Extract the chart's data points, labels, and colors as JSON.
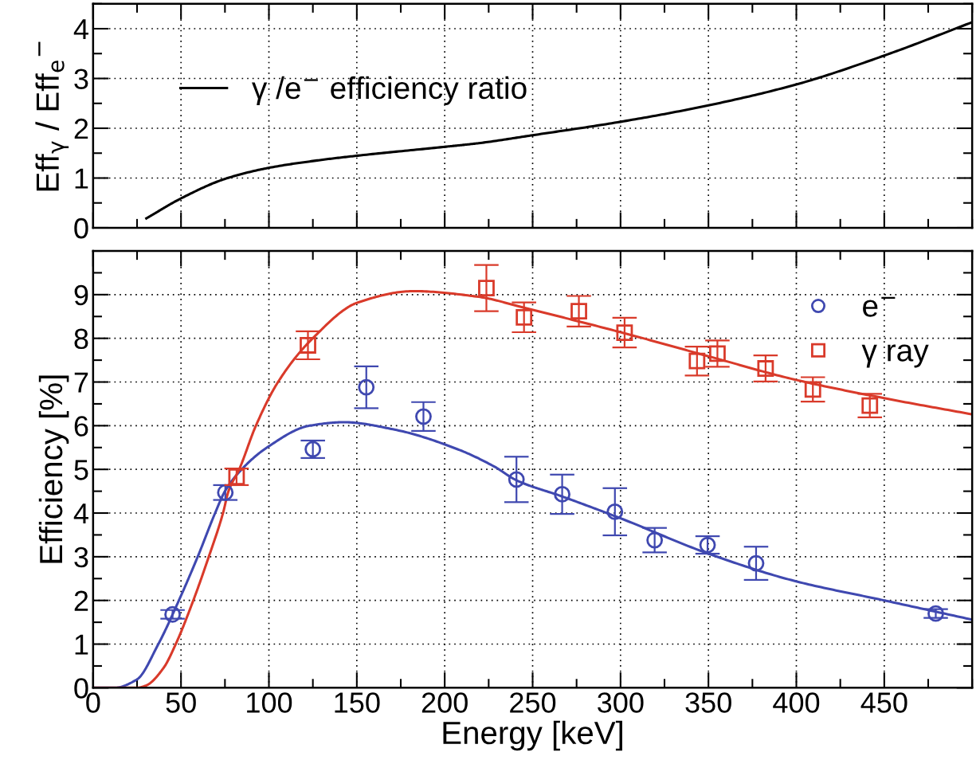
{
  "chart_data": [
    {
      "type": "line",
      "ylabel": "Eff$_{γ}$ / Eff$_{e}$$^{−}$",
      "xlim": [
        0,
        500
      ],
      "xticks": [
        0,
        50,
        100,
        150,
        200,
        250,
        300,
        350,
        400,
        450
      ],
      "ylim": [
        0,
        4.5
      ],
      "yticks": [
        0,
        1,
        2,
        3,
        4
      ],
      "tick_labels": "y",
      "grid": true,
      "legend": "top left",
      "series": [
        {
          "name": "γ /e$^{−}$ efficiency ratio",
          "color": "#000000",
          "x": [
            30.3,
            50.5,
            75.6,
            100.7,
            126.7,
            150.5,
            200.8,
            219.3,
            250,
            300,
            350,
            400,
            450,
            500
          ],
          "values": [
            0.19,
            0.6,
            0.99,
            1.21,
            1.35,
            1.45,
            1.63,
            1.7,
            1.86,
            2.13,
            2.46,
            2.88,
            3.46,
            4.13
          ]
        }
      ]
    },
    {
      "type": "line",
      "xlabel": "Energy [keV]",
      "ylabel": "Efficiency [%]",
      "xlim": [
        0,
        500
      ],
      "xticks": [
        0,
        50,
        100,
        150,
        200,
        250,
        300,
        350,
        400,
        450
      ],
      "ylim": [
        0,
        10
      ],
      "yticks": [
        0,
        1,
        2,
        3,
        4,
        5,
        6,
        7,
        8,
        9
      ],
      "grid": true,
      "legend": "top right",
      "series": [
        {
          "color": "#3f48b0",
          "x": [
            0,
            12,
            24.9,
            37.1,
            48.8,
            59.5,
            69.4,
            75,
            84.5,
            98.9,
            123.1,
            142.8,
            171.5,
            207.4,
            228.4,
            240.8,
            266.8,
            300,
            350,
            398.6,
            450,
            500
          ],
          "values": [
            0,
            0,
            0.19,
            1,
            2,
            3,
            4,
            4.5,
            5,
            5.5,
            6,
            6.08,
            5.91,
            5.46,
            5.06,
            4.75,
            4.38,
            3.88,
            3.07,
            2.45,
            2,
            1.56
          ]
        },
        {
          "color": "#d93a2a",
          "x": [
            0,
            25,
            30,
            40,
            47,
            57,
            65.8,
            73.9,
            77,
            83.1,
            92.6,
            105.2,
            124.9,
            150.6,
            182.3,
            219.3,
            245.1,
            300,
            350,
            398.6,
            450,
            500
          ],
          "values": [
            0,
            0,
            0.05,
            0.45,
            1,
            2,
            3,
            4,
            4.5,
            5,
            6,
            7,
            8,
            8.82,
            9.08,
            8.95,
            8.7,
            8.14,
            7.59,
            7.06,
            6.63,
            6.26
          ]
        },
        {
          "type": "scatter",
          "name": "e$^{−}$",
          "color": "#3f48b0",
          "marker": "circle",
          "x": [
            45.2,
            75.2,
            125,
            155.4,
            187.9,
            240.8,
            266.8,
            296.8,
            319.4,
            349.5,
            377.1,
            479.3
          ],
          "values": [
            1.68,
            4.47,
            5.46,
            6.88,
            6.21,
            4.77,
            4.43,
            4.03,
            3.38,
            3.27,
            2.85,
            1.7
          ],
          "errors": [
            0.1,
            0.17,
            0.2,
            0.48,
            0.33,
            0.52,
            0.45,
            0.54,
            0.28,
            0.2,
            0.38,
            0.1
          ]
        },
        {
          "type": "scatter",
          "name": "γ ray",
          "color": "#d93a2a",
          "marker": "square",
          "x": [
            81.6,
            122.2,
            223.7,
            245.1,
            276.3,
            302.3,
            343.5,
            355.1,
            382.5,
            409.4,
            441.8
          ],
          "values": [
            4.83,
            7.84,
            9.15,
            8.48,
            8.62,
            8.13,
            7.48,
            7.65,
            7.31,
            6.83,
            6.46
          ],
          "errors": [
            0.19,
            0.32,
            0.53,
            0.34,
            0.35,
            0.34,
            0.33,
            0.3,
            0.3,
            0.28,
            0.27
          ]
        }
      ]
    }
  ]
}
